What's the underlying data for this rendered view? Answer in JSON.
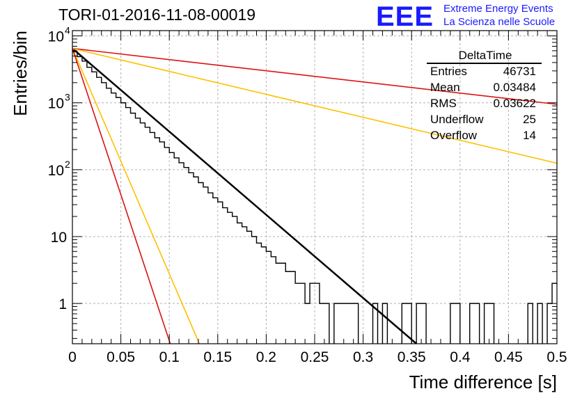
{
  "chart_data": {
    "type": "line",
    "title": "TORI-01-2016-11-08-00019",
    "xlabel": "Time difference [s]",
    "ylabel": "Entries/bin",
    "xlim": [
      0,
      0.5
    ],
    "ylim": [
      0.25,
      12000
    ],
    "yscale": "log",
    "grid": true,
    "x_ticks": [
      "0",
      "0.05",
      "0.1",
      "0.15",
      "0.2",
      "0.25",
      "0.3",
      "0.35",
      "0.4",
      "0.45",
      "0.5"
    ],
    "y_ticks": [
      {
        "label": "1",
        "value": 1
      },
      {
        "label": "10",
        "value": 10
      },
      {
        "label": "10",
        "exp": "2",
        "value": 100
      },
      {
        "label": "10",
        "exp": "3",
        "value": 1000
      },
      {
        "label": "10",
        "exp": "4",
        "value": 10000
      }
    ],
    "histogram": {
      "bin_width": 0.005,
      "counts": [
        5800,
        4900,
        4200,
        3400,
        2900,
        2400,
        2000,
        1650,
        1400,
        1200,
        1000,
        850,
        700,
        590,
        500,
        430,
        360,
        300,
        260,
        215,
        180,
        150,
        127,
        108,
        90,
        78,
        64,
        55,
        45,
        38,
        33,
        27,
        23,
        20,
        16,
        14,
        12,
        10,
        8,
        7,
        6,
        5,
        4,
        4,
        3,
        3,
        2,
        2,
        1,
        2,
        2,
        1,
        1,
        0,
        1,
        1,
        1,
        1,
        1,
        0,
        0,
        0,
        1,
        0,
        1,
        0,
        0,
        0,
        1,
        1,
        0,
        1,
        1,
        0,
        0,
        0,
        0,
        0,
        1,
        1,
        0,
        0,
        1,
        1,
        0,
        1,
        1,
        0,
        0,
        0,
        0,
        0,
        0,
        0,
        1,
        0,
        1,
        0,
        1,
        2
      ]
    },
    "series": [
      {
        "color": "#000000",
        "x": [
          0,
          0.355
        ],
        "y": [
          6500,
          0.25
        ]
      },
      {
        "color": "#dd1111",
        "x": [
          0,
          0.5
        ],
        "y": [
          6500,
          950
        ]
      },
      {
        "color": "#ffc000",
        "x": [
          0,
          0.5
        ],
        "y": [
          6500,
          125
        ]
      },
      {
        "color": "#ffc000",
        "x": [
          0,
          0.131
        ],
        "y": [
          6500,
          0.25
        ]
      },
      {
        "color": "#dd1111",
        "x": [
          0,
          0.101
        ],
        "y": [
          6500,
          0.25
        ]
      }
    ],
    "stats": {
      "title": "DeltaTime",
      "rows": [
        {
          "label": "Entries",
          "value": "46731"
        },
        {
          "label": "Mean",
          "value": "0.03484"
        },
        {
          "label": "RMS",
          "value": "0.03622"
        },
        {
          "label": "Underflow",
          "value": "25"
        },
        {
          "label": "Overflow",
          "value": "14"
        }
      ]
    }
  },
  "logo": {
    "text": "EEE",
    "line1": "Extreme Energy Events",
    "line2": "La Scienza nelle Scuole",
    "color": "#1a1aff"
  }
}
